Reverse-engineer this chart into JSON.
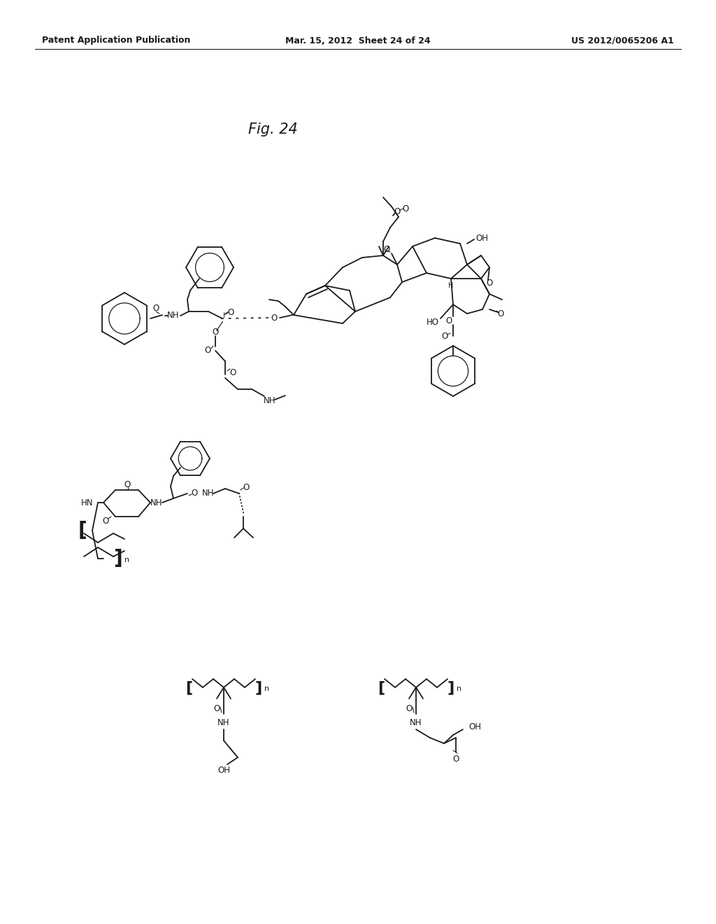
{
  "header_left": "Patent Application Publication",
  "header_mid": "Mar. 15, 2012  Sheet 24 of 24",
  "header_right": "US 2012/0065206 A1",
  "figure_label": "Fig. 24",
  "background_color": "#ffffff",
  "text_color": "#1a1a1a",
  "line_color": "#1a1a1a",
  "header_fontsize": 9,
  "figure_label_fontsize": 15
}
